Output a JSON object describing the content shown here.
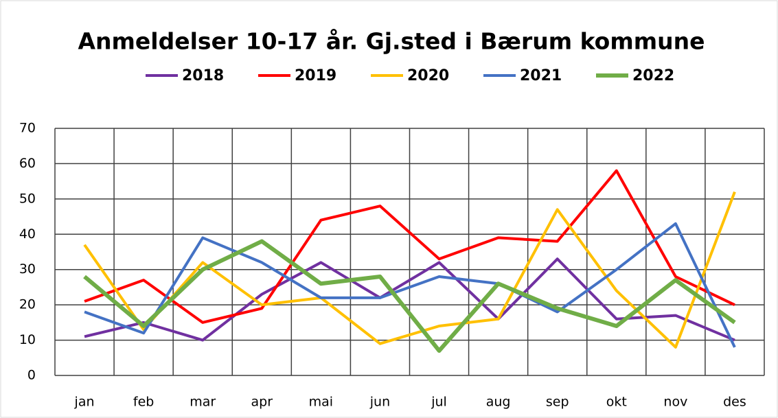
{
  "chart_data": {
    "type": "line",
    "title": "Anmeldelser 10-17 år. Gj.sted i Bærum kommune",
    "categories": [
      "jan",
      "feb",
      "mar",
      "apr",
      "mai",
      "jun",
      "jul",
      "aug",
      "sep",
      "okt",
      "nov",
      "des"
    ],
    "series": [
      {
        "name": "2018",
        "color": "#7030a0",
        "values": [
          11,
          15,
          10,
          23,
          32,
          22,
          32,
          16,
          33,
          16,
          17,
          10
        ]
      },
      {
        "name": "2019",
        "color": "#ff0000",
        "values": [
          21,
          27,
          15,
          19,
          44,
          48,
          33,
          39,
          38,
          58,
          28,
          20
        ]
      },
      {
        "name": "2020",
        "color": "#ffc000",
        "values": [
          37,
          13,
          32,
          20,
          22,
          9,
          14,
          16,
          47,
          24,
          8,
          52
        ]
      },
      {
        "name": "2021",
        "color": "#4472c4",
        "values": [
          18,
          12,
          39,
          32,
          22,
          22,
          28,
          26,
          18,
          30,
          43,
          8
        ]
      },
      {
        "name": "2022",
        "color": "#70ad47",
        "values": [
          28,
          14,
          30,
          38,
          26,
          28,
          7,
          26,
          19,
          14,
          27,
          15
        ]
      }
    ],
    "ylim": [
      0,
      70
    ],
    "yticks": [
      0,
      10,
      20,
      30,
      40,
      50,
      60,
      70
    ],
    "grid": true,
    "legend": "top"
  }
}
